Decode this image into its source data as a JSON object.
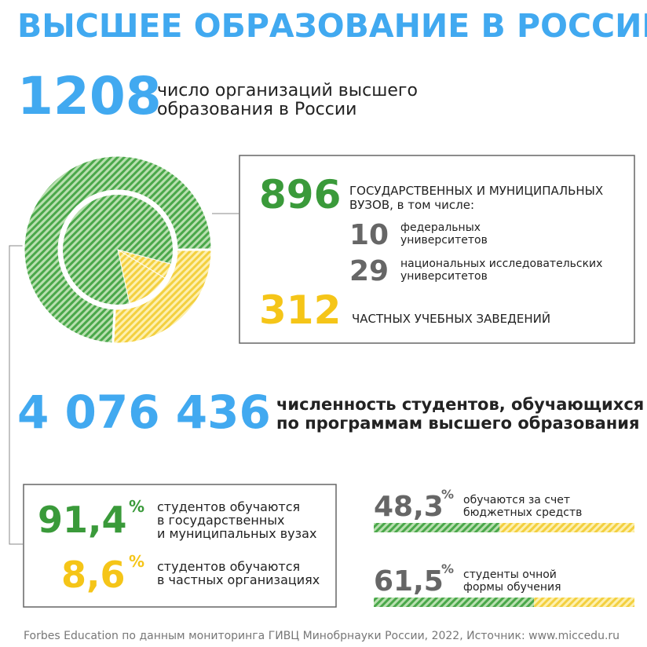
{
  "title": "ВЫСШЕЕ ОБРАЗОВАНИЕ В РОССИИ",
  "organizations": {
    "value": 1208,
    "text": [
      "число организаций высшего",
      "образования в России"
    ]
  },
  "breakdown": {
    "state": {
      "value": 896,
      "text": [
        "ГОСУДАРСТВЕННЫХ И МУНИЦИПАЛЬНЫХ",
        "ВУЗОВ, в том числе:"
      ],
      "color": "#3a9a3a"
    },
    "federal": {
      "value": 10,
      "text": [
        "федеральных",
        "университетов"
      ]
    },
    "research": {
      "value": 29,
      "text": [
        "национальных исследовательских",
        "университетов"
      ]
    },
    "private": {
      "value": 312,
      "text": [
        "ЧАСТНЫХ УЧЕБНЫХ ЗАВЕДЕНИЙ"
      ],
      "color": "#f5c518"
    }
  },
  "students": {
    "value": 4076436,
    "label": "4 076 436",
    "text": [
      "численность студентов, обучающихся",
      "по программам высшего образования"
    ]
  },
  "shares": [
    {
      "value": 91.4,
      "label": "91,4",
      "unit": "%",
      "text": [
        "студентов обучаются",
        "в государственных",
        "и муниципальных вузах"
      ],
      "color": "#3a9a3a"
    },
    {
      "value": 8.6,
      "label": "8,6",
      "unit": "%",
      "text": [
        "студентов обучаются",
        "в частных организациях"
      ],
      "color": "#f5c518"
    }
  ],
  "bars": [
    {
      "value": 48.3,
      "label": "48,3",
      "unit": "%",
      "text": [
        "обучаются за счет",
        "бюджетных средств"
      ]
    },
    {
      "value": 61.5,
      "label": "61,5",
      "unit": "%",
      "text": [
        "студенты очной",
        "формы обучения"
      ]
    }
  ],
  "footer": "Forbes Education по данным мониторинга ГИВЦ Минобрнауки России, 2022, Источник: www.miccedu.ru"
}
